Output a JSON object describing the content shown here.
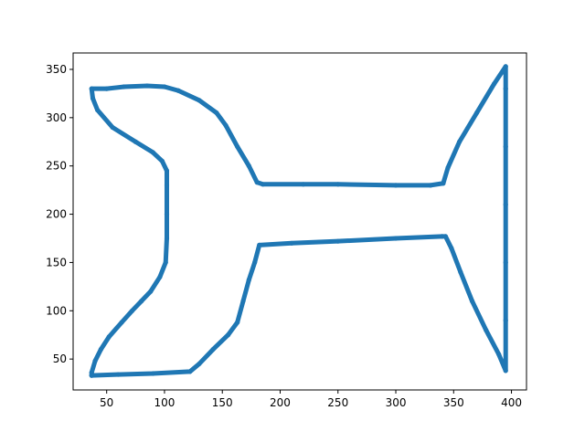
{
  "chart_data": {
    "type": "scatter",
    "title": "",
    "xlabel": "",
    "ylabel": "",
    "xlim": [
      21,
      413
    ],
    "ylim": [
      18,
      367
    ],
    "x_ticks": [
      50,
      100,
      150,
      200,
      250,
      300,
      350,
      400
    ],
    "y_ticks": [
      50,
      100,
      150,
      200,
      250,
      300,
      350
    ],
    "grid": false,
    "legend": "none",
    "series": [
      {
        "color": "#1f77b4",
        "marker": "circle",
        "connected_path": true,
        "points": [
          [
            37,
            33
          ],
          [
            60,
            34
          ],
          [
            90,
            35
          ],
          [
            122,
            37
          ],
          [
            130,
            45
          ],
          [
            142,
            60
          ],
          [
            155,
            75
          ],
          [
            163,
            88
          ],
          [
            168,
            110
          ],
          [
            173,
            132
          ],
          [
            178,
            150
          ],
          [
            182,
            168
          ],
          [
            210,
            170
          ],
          [
            250,
            172
          ],
          [
            300,
            175
          ],
          [
            340,
            177
          ],
          [
            343,
            177
          ],
          [
            348,
            165
          ],
          [
            356,
            140
          ],
          [
            366,
            110
          ],
          [
            378,
            80
          ],
          [
            389,
            55
          ],
          [
            395,
            38
          ],
          [
            395,
            90
          ],
          [
            395,
            150
          ],
          [
            395,
            210
          ],
          [
            395,
            270
          ],
          [
            395,
            330
          ],
          [
            395,
            353
          ],
          [
            385,
            335
          ],
          [
            370,
            305
          ],
          [
            355,
            275
          ],
          [
            345,
            248
          ],
          [
            341,
            232
          ],
          [
            330,
            230
          ],
          [
            300,
            230
          ],
          [
            250,
            231
          ],
          [
            220,
            231
          ],
          [
            185,
            231
          ],
          [
            180,
            233
          ],
          [
            173,
            250
          ],
          [
            163,
            270
          ],
          [
            153,
            292
          ],
          [
            145,
            305
          ],
          [
            130,
            318
          ],
          [
            112,
            328
          ],
          [
            100,
            332
          ],
          [
            85,
            333
          ],
          [
            65,
            332
          ],
          [
            50,
            330
          ],
          [
            37,
            330
          ],
          [
            38,
            320
          ],
          [
            42,
            308
          ],
          [
            55,
            290
          ],
          [
            75,
            275
          ],
          [
            90,
            264
          ],
          [
            98,
            255
          ],
          [
            102,
            245
          ],
          [
            102,
            230
          ],
          [
            102,
            200
          ],
          [
            102,
            175
          ],
          [
            101,
            150
          ],
          [
            96,
            135
          ],
          [
            88,
            120
          ],
          [
            80,
            110
          ],
          [
            72,
            100
          ],
          [
            63,
            88
          ],
          [
            52,
            73
          ],
          [
            45,
            60
          ],
          [
            40,
            48
          ],
          [
            37,
            36
          ],
          [
            37,
            33
          ]
        ]
      }
    ]
  }
}
